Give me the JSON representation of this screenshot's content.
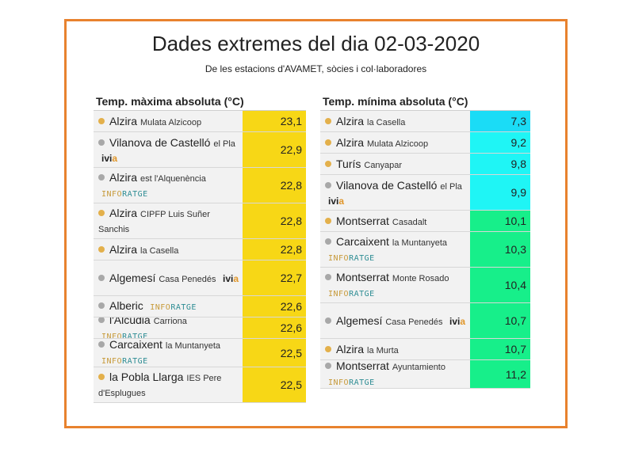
{
  "header": {
    "title": "Dades extremes del dia 02-03-2020",
    "subtitle": "De les estacions d'AVAMET, sòcies i col·laboradores"
  },
  "colors": {
    "frame_border": "#e8822e",
    "max_value_bg": "#f7d716",
    "min_cyan_bg": "#1ff5f5",
    "min_cyan_top_bg": "#1bdcf6",
    "min_green_bg": "#17ef8a",
    "dot_gold": "#e3b04b",
    "dot_grey": "#a8a8a8"
  },
  "networks": {
    "ivia": {
      "prefix": "ivi",
      "suffix": "a"
    },
    "inforatge": {
      "prefix": "INFO",
      "suffix": "RATGE"
    }
  },
  "max_table": {
    "heading": "Temp. màxima absoluta (°C)",
    "rows": [
      {
        "dot": "gold",
        "station": "Alzira",
        "detail": "Mulata Alzicoop",
        "network": "",
        "value": "23,1"
      },
      {
        "dot": "grey",
        "station": "Vilanova de Castelló",
        "detail": "el Pla",
        "network": "ivia",
        "value": "22,9"
      },
      {
        "dot": "grey",
        "station": "Alzira",
        "detail": "est l'Alquenència",
        "network": "inforatge",
        "value": "22,8"
      },
      {
        "dot": "gold",
        "station": "Alzira",
        "detail": "CIPFP Luis Suñer Sanchis",
        "network": "",
        "value": "22,8"
      },
      {
        "dot": "gold",
        "station": "Alzira",
        "detail": "la Casella",
        "network": "",
        "value": "22,8"
      },
      {
        "dot": "grey",
        "station": "Algemesí",
        "detail": "Casa Penedés",
        "network": "ivia",
        "value": "22,7"
      },
      {
        "dot": "grey",
        "station": "Alberic",
        "detail": "",
        "network": "inforatge",
        "value": "22,6"
      },
      {
        "dot": "grey",
        "station": "l'Alcúdia",
        "detail": "Carriona",
        "network": "inforatge",
        "value": "22,6"
      },
      {
        "dot": "grey",
        "station": "Carcaixent",
        "detail": "la Muntanyeta",
        "network": "inforatge",
        "value": "22,5"
      },
      {
        "dot": "gold",
        "station": "la Pobla Llarga",
        "detail": "IES Pere d'Esplugues",
        "network": "",
        "value": "22,5"
      }
    ]
  },
  "min_table": {
    "heading": "Temp. mínima absoluta (°C)",
    "rows": [
      {
        "dot": "gold",
        "station": "Alzira",
        "detail": "la Casella",
        "network": "",
        "value": "7,3"
      },
      {
        "dot": "gold",
        "station": "Alzira",
        "detail": "Mulata Alzicoop",
        "network": "",
        "value": "9,2"
      },
      {
        "dot": "gold",
        "station": "Turís",
        "detail": "Canyapar",
        "network": "",
        "value": "9,8"
      },
      {
        "dot": "grey",
        "station": "Vilanova de Castelló",
        "detail": "el Pla",
        "network": "ivia",
        "value": "9,9"
      },
      {
        "dot": "gold",
        "station": "Montserrat",
        "detail": "Casadalt",
        "network": "",
        "value": "10,1"
      },
      {
        "dot": "grey",
        "station": "Carcaixent",
        "detail": "la Muntanyeta",
        "network": "inforatge",
        "value": "10,3"
      },
      {
        "dot": "grey",
        "station": "Montserrat",
        "detail": "Monte Rosado",
        "network": "inforatge",
        "value": "10,4"
      },
      {
        "dot": "grey",
        "station": "Algemesí",
        "detail": "Casa Penedés",
        "network": "ivia",
        "value": "10,7"
      },
      {
        "dot": "gold",
        "station": "Alzira",
        "detail": "la Murta",
        "network": "",
        "value": "10,7"
      },
      {
        "dot": "grey",
        "station": "Montserrat",
        "detail": "Ayuntamiento",
        "network": "inforatge",
        "value": "11,2"
      }
    ]
  }
}
